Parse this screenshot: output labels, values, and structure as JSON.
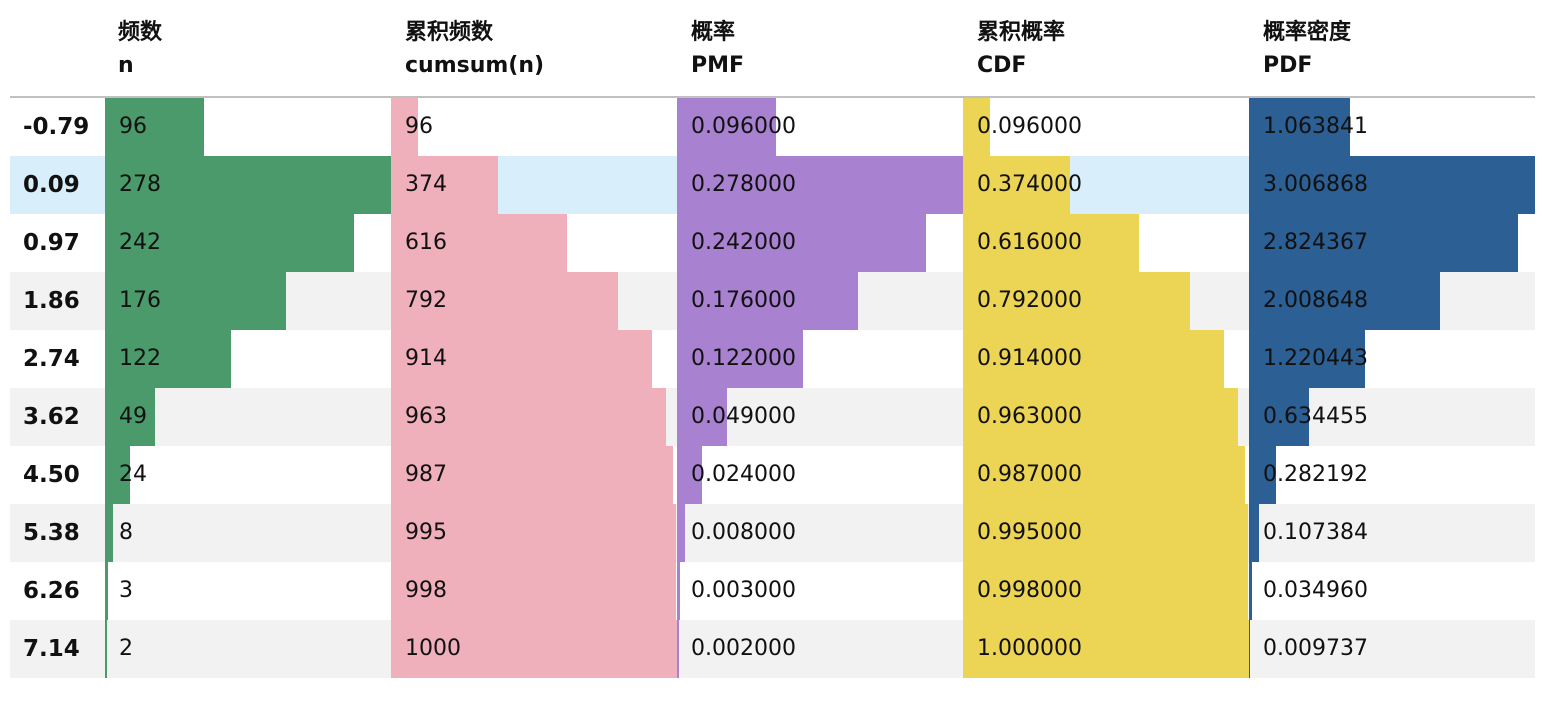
{
  "headers": [
    {
      "cn": "",
      "en": ""
    },
    {
      "cn": "频数",
      "en": "n"
    },
    {
      "cn": "累积频数",
      "en": "cumsum(n)"
    },
    {
      "cn": "概率",
      "en": "PMF"
    },
    {
      "cn": "累积概率",
      "en": "CDF"
    },
    {
      "cn": "概率密度",
      "en": "PDF"
    }
  ],
  "highlighted_row": 1,
  "colors": {
    "n": "#4b9a6b",
    "cumsum": "#efb0bb",
    "pmf": "#a882d0",
    "cdf": "#ecd454",
    "pdf": "#2c5f93",
    "row_alt": "#f2f2f2",
    "row_highlight": "#d8eefb"
  },
  "chart_data": {
    "type": "table",
    "columns": [
      "频数 n",
      "累积频数 cumsum(n)",
      "概率 PMF",
      "累积概率 CDF",
      "概率密度 PDF"
    ],
    "index": [
      "-0.79",
      "0.09",
      "0.97",
      "1.86",
      "2.74",
      "3.62",
      "4.50",
      "5.38",
      "6.26",
      "7.14"
    ],
    "rows": [
      {
        "index": "-0.79",
        "n": "96",
        "cumsum": "96",
        "pmf": "0.096000",
        "cdf": "0.096000",
        "pdf": "1.063841"
      },
      {
        "index": "0.09",
        "n": "278",
        "cumsum": "374",
        "pmf": "0.278000",
        "cdf": "0.374000",
        "pdf": "3.006868"
      },
      {
        "index": "0.97",
        "n": "242",
        "cumsum": "616",
        "pmf": "0.242000",
        "cdf": "0.616000",
        "pdf": "2.824367"
      },
      {
        "index": "1.86",
        "n": "176",
        "cumsum": "792",
        "pmf": "0.176000",
        "cdf": "0.792000",
        "pdf": "2.008648"
      },
      {
        "index": "2.74",
        "n": "122",
        "cumsum": "914",
        "pmf": "0.122000",
        "cdf": "0.914000",
        "pdf": "1.220443"
      },
      {
        "index": "3.62",
        "n": "49",
        "cumsum": "963",
        "pmf": "0.049000",
        "cdf": "0.963000",
        "pdf": "0.634455"
      },
      {
        "index": "4.50",
        "n": "24",
        "cumsum": "987",
        "pmf": "0.024000",
        "cdf": "0.987000",
        "pdf": "0.282192"
      },
      {
        "index": "5.38",
        "n": "8",
        "cumsum": "995",
        "pmf": "0.008000",
        "cdf": "0.995000",
        "pdf": "0.107384"
      },
      {
        "index": "6.26",
        "n": "3",
        "cumsum": "998",
        "pmf": "0.003000",
        "cdf": "0.998000",
        "pdf": "0.034960"
      },
      {
        "index": "7.14",
        "n": "2",
        "cumsum": "1000",
        "pmf": "0.002000",
        "cdf": "1.000000",
        "pdf": "0.009737"
      }
    ]
  }
}
